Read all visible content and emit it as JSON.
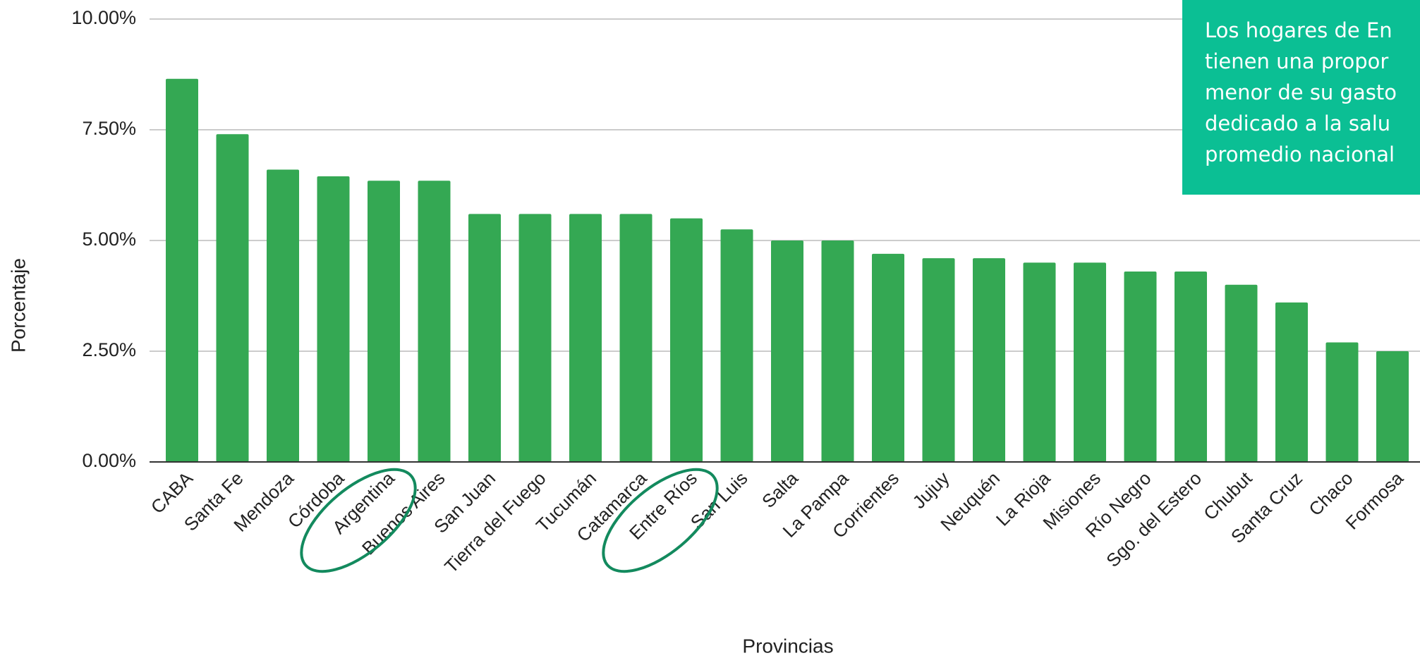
{
  "chart_data": {
    "type": "bar",
    "x_label": "Provincias",
    "y_label": "Porcentaje",
    "categories": [
      "CABA",
      "Santa Fe",
      "Mendoza",
      "Córdoba",
      "Argentina",
      "Buenos Aires",
      "San Juan",
      "Tierra del Fuego",
      "Tucumán",
      "Catamarca",
      "Entre Ríos",
      "San Luis",
      "Salta",
      "La Pampa",
      "Corrientes",
      "Jujuy",
      "Neuquén",
      "La Rioja",
      "Misiones",
      "Río Negro",
      "Sgo. del Estero",
      "Chubut",
      "Santa Cruz",
      "Chaco",
      "Formosa"
    ],
    "values": [
      8.65,
      7.4,
      6.6,
      6.45,
      6.35,
      6.35,
      5.6,
      5.6,
      5.6,
      5.6,
      5.5,
      5.25,
      5.0,
      5.0,
      4.7,
      4.6,
      4.6,
      4.5,
      4.5,
      4.3,
      4.3,
      4.0,
      3.6,
      2.7,
      2.5
    ],
    "color": "#34a853",
    "ylim": [
      0,
      10
    ],
    "yticks": [
      {
        "value": 0,
        "label": "0.00%"
      },
      {
        "value": 2.5,
        "label": "2.50%"
      },
      {
        "value": 5,
        "label": "5.00%"
      },
      {
        "value": 7.5,
        "label": "7.50%"
      },
      {
        "value": 10,
        "label": "10.00%"
      }
    ],
    "grid": true,
    "annotation": [
      "Los hogares de En",
      "tienen una propor",
      "menor de su gasto",
      "dedicado a la salu",
      "promedio nacional"
    ]
  }
}
